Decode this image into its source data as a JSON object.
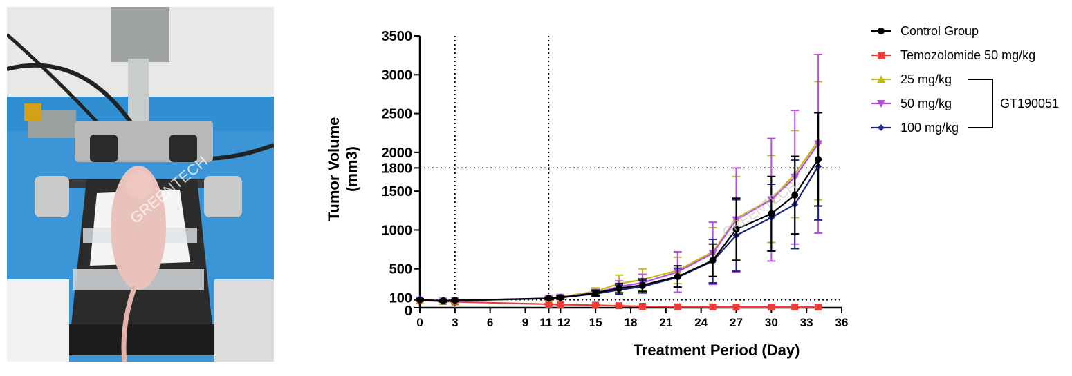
{
  "photo": {
    "description_icon": "mouse-on-stereotaxic-frame",
    "watermark": "GREENTECH",
    "bg_color": "#2f8fd0"
  },
  "chart_data": {
    "type": "line",
    "xlabel": "Treatment Period (Day)",
    "ylabel_lines": [
      "Tumor Volume",
      "(mm3)"
    ],
    "xlim": [
      0,
      36
    ],
    "ylim": [
      0,
      3500
    ],
    "x_ticks": [
      0,
      3,
      6,
      9,
      11,
      12,
      15,
      18,
      21,
      24,
      27,
      30,
      33,
      36
    ],
    "x_tick_labels": [
      "0",
      "3",
      "6",
      "9",
      "11",
      "12",
      "15",
      "18",
      "21",
      "24",
      "27",
      "30",
      "33",
      "36"
    ],
    "y_ticks": [
      0,
      100,
      500,
      1000,
      1500,
      1800,
      2000,
      2500,
      3000,
      3500
    ],
    "y_tick_labels": [
      "0",
      "100",
      "500",
      "1000",
      "1500",
      "1800",
      "2000",
      "2500",
      "3000",
      "3500"
    ],
    "reference_lines": {
      "vertical": [
        3,
        11
      ],
      "horizontal": [
        100,
        1800
      ]
    },
    "watermark": "GREENTECH",
    "series": [
      {
        "name": "Control Group",
        "color": "#000000",
        "marker": "circle",
        "x": [
          0,
          2,
          3,
          11,
          12,
          15,
          17,
          19,
          22,
          25,
          27,
          30,
          32,
          34
        ],
        "y": [
          100,
          90,
          95,
          120,
          130,
          190,
          250,
          290,
          400,
          610,
          1010,
          1210,
          1450,
          1910
        ],
        "err": [
          15,
          12,
          12,
          15,
          20,
          35,
          60,
          80,
          140,
          210,
          400,
          480,
          500,
          600
        ]
      },
      {
        "name": "Temozolomide 50 mg/kg",
        "color": "#ef3b35",
        "marker": "square",
        "x": [
          0,
          2,
          3,
          11,
          12,
          15,
          17,
          19,
          22,
          25,
          27,
          30,
          32,
          34
        ],
        "y": [
          95,
          80,
          75,
          45,
          40,
          32,
          25,
          18,
          12,
          10,
          8,
          8,
          8,
          8
        ],
        "err": [
          8,
          8,
          8,
          6,
          6,
          5,
          5,
          4,
          3,
          3,
          3,
          3,
          3,
          3
        ]
      },
      {
        "name": "25 mg/kg",
        "color": "#c2bd16",
        "marker": "triangle-up",
        "x": [
          0,
          2,
          3,
          11,
          12,
          15,
          17,
          19,
          22,
          25,
          27,
          30,
          32,
          34
        ],
        "y": [
          100,
          85,
          90,
          120,
          140,
          210,
          310,
          360,
          480,
          720,
          1150,
          1400,
          1720,
          2150
        ],
        "err": [
          15,
          12,
          12,
          18,
          25,
          45,
          110,
          140,
          170,
          310,
          540,
          560,
          560,
          760
        ]
      },
      {
        "name": "50 mg/kg",
        "color": "#b84ce6",
        "marker": "triangle-down",
        "x": [
          0,
          2,
          3,
          11,
          12,
          15,
          17,
          19,
          22,
          25,
          27,
          30,
          32,
          34
        ],
        "y": [
          100,
          85,
          90,
          120,
          135,
          195,
          270,
          320,
          460,
          700,
          1130,
          1390,
          1680,
          2110
        ],
        "err": [
          15,
          12,
          12,
          18,
          22,
          40,
          75,
          110,
          260,
          400,
          670,
          790,
          860,
          1150
        ]
      },
      {
        "name": "100 mg/kg",
        "color": "#1a237e",
        "marker": "diamond",
        "x": [
          0,
          2,
          3,
          11,
          12,
          15,
          17,
          19,
          22,
          25,
          27,
          30,
          32,
          34
        ],
        "y": [
          100,
          85,
          90,
          120,
          130,
          180,
          230,
          270,
          390,
          600,
          930,
          1160,
          1330,
          1820
        ],
        "err": [
          15,
          12,
          12,
          15,
          20,
          35,
          60,
          80,
          120,
          280,
          460,
          430,
          570,
          690
        ]
      }
    ],
    "legend": {
      "placement": "top-right",
      "bracket_label": "GT190051",
      "bracket_series": [
        "25 mg/kg",
        "50 mg/kg",
        "100 mg/kg"
      ]
    }
  }
}
